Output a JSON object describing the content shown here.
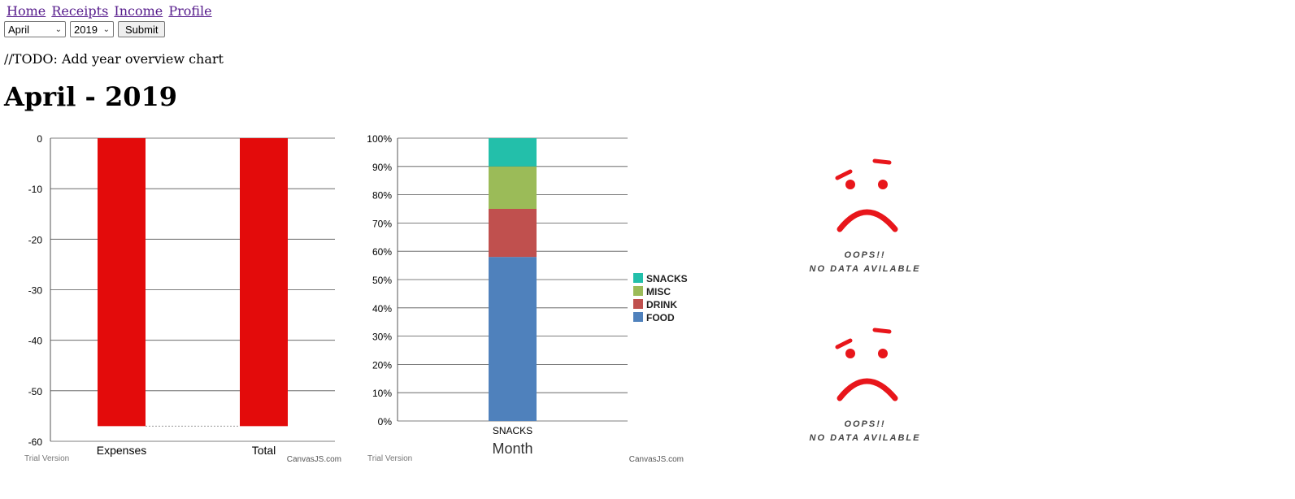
{
  "nav": {
    "links": [
      {
        "label": "Home"
      },
      {
        "label": "Receipts"
      },
      {
        "label": "Income"
      },
      {
        "label": "Profile"
      }
    ]
  },
  "controls": {
    "month_selected": "April",
    "year_selected": "2019",
    "submit_label": "Submit"
  },
  "todo_text": "//TODO: Add year overview chart",
  "page_title": "April - 2019",
  "chart_data": [
    {
      "type": "bar",
      "categories": [
        "Expenses",
        "Total"
      ],
      "values": [
        -57,
        -57
      ],
      "ylim": [
        -60,
        0
      ],
      "yticks": [
        "0",
        "-10",
        "-20",
        "-30",
        "-40",
        "-50",
        "-60"
      ],
      "colors": [
        "#e30b0b"
      ],
      "grid": true,
      "footer_left": "Trial Version",
      "footer_right": "CanvasJS.com"
    },
    {
      "type": "bar",
      "stacked": "percent",
      "categories": [
        "SNACKS"
      ],
      "xlabel": "Month",
      "ylim": [
        0,
        100
      ],
      "yticks": [
        "0%",
        "10%",
        "20%",
        "30%",
        "40%",
        "50%",
        "60%",
        "70%",
        "80%",
        "90%",
        "100%"
      ],
      "series": [
        {
          "name": "FOOD",
          "values": [
            58
          ],
          "color": "#4f81bc"
        },
        {
          "name": "DRINK",
          "values": [
            17
          ],
          "color": "#c0504e"
        },
        {
          "name": "MISC",
          "values": [
            15
          ],
          "color": "#9bbb58"
        },
        {
          "name": "SNACKS",
          "values": [
            10
          ],
          "color": "#23bfaa"
        }
      ],
      "legend_items": [
        "SNACKS",
        "MISC",
        "DRINK",
        "FOOD"
      ],
      "legend_position": "right",
      "grid": true,
      "footer_left": "Trial Version",
      "footer_right": "CanvasJS.com"
    }
  ],
  "no_data": [
    {
      "line1": "OOPS!!",
      "line2": "NO  DATA  AVILABLE"
    },
    {
      "line1": "OOPS!!",
      "line2": "NO  DATA  AVILABLE"
    }
  ],
  "colors": {
    "error_red": "#e8161b",
    "link": "#551a8b"
  }
}
